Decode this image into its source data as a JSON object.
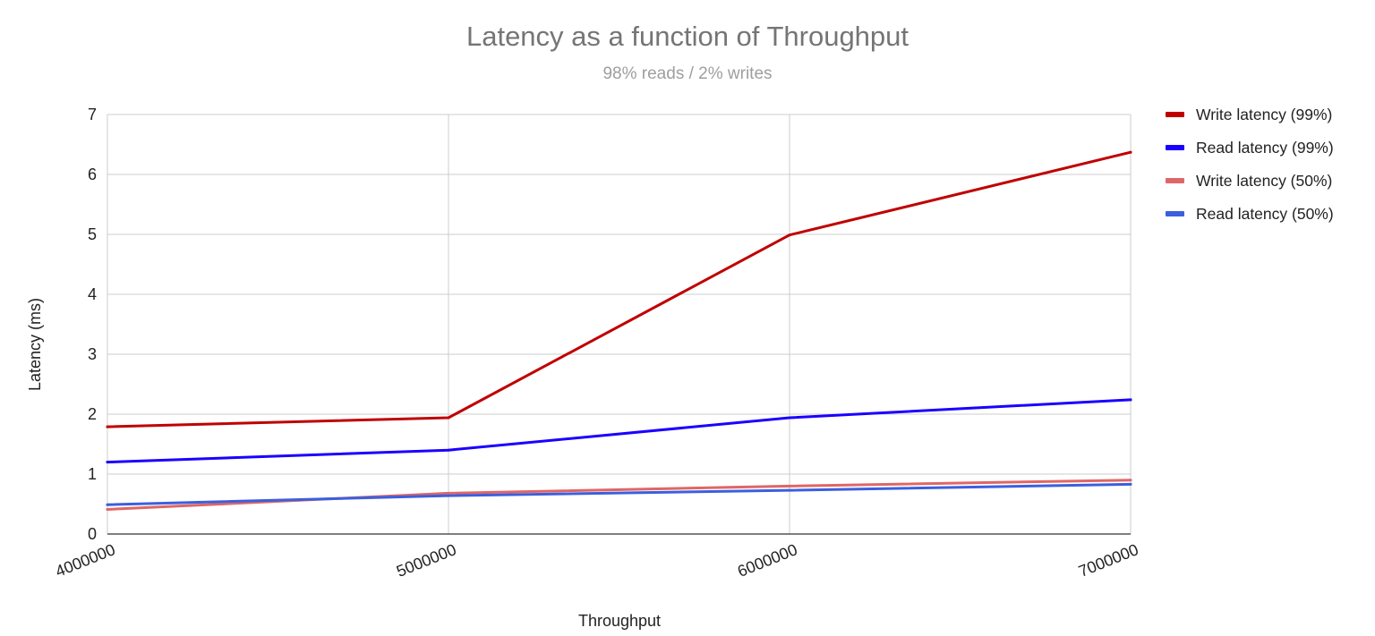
{
  "chart_data": {
    "type": "line",
    "title": "Latency as a function of Throughput",
    "subtitle": "98% reads / 2% writes",
    "xlabel": "Throughput",
    "ylabel": "Latency (ms)",
    "x": [
      4000000,
      5000000,
      6000000,
      7000000
    ],
    "x_tick_labels": [
      "4000000",
      "5000000",
      "6000000",
      "7000000"
    ],
    "ylim": [
      0,
      7
    ],
    "y_ticks": [
      0,
      1,
      2,
      3,
      4,
      5,
      6,
      7
    ],
    "grid": true,
    "legend_position": "right",
    "series": [
      {
        "name": "Write latency (99%)",
        "color": "#c00000",
        "values": [
          1.79,
          1.94,
          4.99,
          6.37
        ]
      },
      {
        "name": "Read latency (99%)",
        "color": "#1a00ff",
        "values": [
          1.2,
          1.4,
          1.94,
          2.24
        ]
      },
      {
        "name": "Write latency (50%)",
        "color": "#e06666",
        "values": [
          0.41,
          0.68,
          0.8,
          0.9
        ]
      },
      {
        "name": "Read latency (50%)",
        "color": "#3c5fde",
        "values": [
          0.49,
          0.64,
          0.73,
          0.83
        ]
      }
    ]
  }
}
